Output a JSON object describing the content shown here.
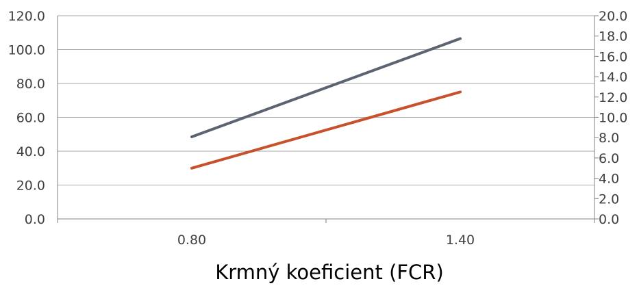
{
  "chart_data": {
    "type": "line",
    "categories": [
      "0.80",
      "1.40"
    ],
    "xlabel": "Krmný koeficient (FCR)",
    "y_left": {
      "ylim": [
        0,
        120
      ],
      "ticks": [
        "0.0",
        "20.0",
        "40.0",
        "60.0",
        "80.0",
        "100.0",
        "120.0"
      ]
    },
    "y_right": {
      "ylim": [
        0,
        20
      ],
      "ticks": [
        "0.0",
        "2.0",
        "4.0",
        "6.0",
        "8.0",
        "10.0",
        "12.0",
        "14.0",
        "16.0",
        "18.0",
        "20.0"
      ]
    },
    "series": [
      {
        "axis": "left",
        "color": "#5b6470",
        "values": [
          48.5,
          106.5
        ]
      },
      {
        "axis": "right",
        "color": "#c8502a",
        "values": [
          5.0,
          12.5
        ]
      }
    ],
    "grid": true,
    "legend": "none"
  }
}
